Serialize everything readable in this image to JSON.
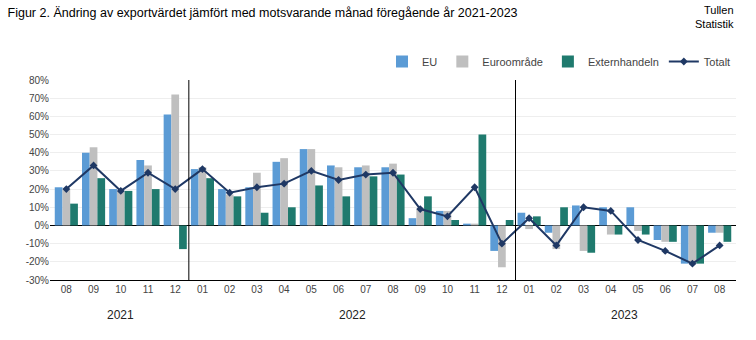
{
  "chart_data": {
    "type": "bar",
    "title": "Figur 2. Ändring av exportvärdet jämfört med motsvarande månad föregående år 2021-2023",
    "annotations": [
      {
        "text": "Tullen\nStatistik"
      }
    ],
    "categories": [
      "08",
      "09",
      "10",
      "11",
      "12",
      "01",
      "02",
      "03",
      "04",
      "05",
      "06",
      "07",
      "08",
      "09",
      "10",
      "11",
      "12",
      "01",
      "02",
      "03",
      "04",
      "05",
      "06",
      "07",
      "08"
    ],
    "category_groups": [
      "2021",
      "2021",
      "2021",
      "2021",
      "2021",
      "2022",
      "2022",
      "2022",
      "2022",
      "2022",
      "2022",
      "2022",
      "2022",
      "2022",
      "2022",
      "2022",
      "2022",
      "2023",
      "2023",
      "2023",
      "2023",
      "2023",
      "2023",
      "2023",
      "2023"
    ],
    "series": [
      {
        "name": "EU",
        "type": "bar",
        "color": "#5B9BD5",
        "values": [
          21,
          40,
          20,
          36,
          61,
          31,
          20,
          21,
          35,
          42,
          33,
          32,
          32,
          4,
          8,
          1,
          -14,
          7,
          -4,
          11,
          10,
          10,
          -8,
          -21,
          -4
        ]
      },
      {
        "name": "Euroområde",
        "type": "bar",
        "color": "#BFBFBF",
        "values": [
          20,
          43,
          19,
          33,
          72,
          32,
          17,
          29,
          37,
          42,
          32,
          33,
          34,
          9,
          8,
          1,
          -23,
          -2,
          -13,
          -14,
          -5,
          -3,
          -9,
          -21,
          -4
        ]
      },
      {
        "name": "Externhandeln",
        "type": "bar",
        "color": "#1F7A6E",
        "values": [
          12,
          26,
          19,
          20,
          -13,
          26,
          16,
          7,
          10,
          22,
          16,
          27,
          28,
          16,
          3,
          50,
          3,
          5,
          10,
          -15,
          -5,
          -5,
          -9,
          -21,
          -9
        ]
      },
      {
        "name": "Totalt",
        "type": "line",
        "color": "#1F3864",
        "marker": "diamond",
        "values": [
          20,
          33,
          19,
          29,
          20,
          31,
          18,
          21,
          23,
          30,
          25,
          28,
          29,
          9,
          5,
          21,
          -10,
          4,
          -11,
          10,
          8,
          -8,
          -14,
          -21,
          -11
        ]
      }
    ],
    "ylim": [
      -30,
      80
    ],
    "yticks": [
      {
        "value": -30,
        "label": "-30%"
      },
      {
        "value": -20,
        "label": "-20%"
      },
      {
        "value": -10,
        "label": "-10%"
      },
      {
        "value": 0,
        "label": "0%"
      },
      {
        "value": 10,
        "label": "10%"
      },
      {
        "value": 20,
        "label": "20%"
      },
      {
        "value": 30,
        "label": "30%"
      },
      {
        "value": 40,
        "label": "40%"
      },
      {
        "value": 50,
        "label": "50%"
      },
      {
        "value": 60,
        "label": "60%"
      },
      {
        "value": 70,
        "label": "70%"
      },
      {
        "value": 80,
        "label": "80%"
      }
    ],
    "grid": true,
    "legend": "upper right"
  }
}
